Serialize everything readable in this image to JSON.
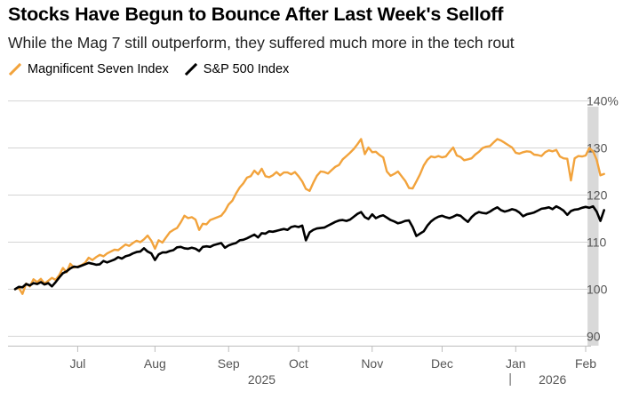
{
  "chart_data": {
    "type": "line",
    "title": "Stocks Have Begun to Bounce After Last Week's Selloff",
    "subtitle": "While the Mag 7 still outperform, they suffered much more in the tech rout",
    "xlabel": "",
    "ylabel": "",
    "ylim": [
      88,
      142
    ],
    "yticks": [
      90,
      100,
      110,
      120,
      130,
      140
    ],
    "ytick_labels": [
      "90",
      "100",
      "110",
      "120",
      "130",
      "140%"
    ],
    "x_unit": "trading day",
    "xlim": [
      0,
      155
    ],
    "month_ticks": [
      {
        "label": "Jul",
        "x": 17
      },
      {
        "label": "Aug",
        "x": 38
      },
      {
        "label": "Sep",
        "x": 58
      },
      {
        "label": "Oct",
        "x": 77
      },
      {
        "label": "Nov",
        "x": 97
      },
      {
        "label": "Dec",
        "x": 116
      },
      {
        "label": "Jan",
        "x": 136
      },
      {
        "label": "Feb",
        "x": 155
      }
    ],
    "year_labels": [
      {
        "label": "2025",
        "x": 67
      },
      {
        "label": "2026",
        "x": 146
      }
    ],
    "year_separator_x": 134.5,
    "highlight_range": [
      155.5,
      158.5
    ],
    "series": [
      {
        "name": "Magnificent Seven Index",
        "color": "#f2a33c",
        "x": [
          0,
          1,
          2,
          3,
          4,
          5,
          6,
          7,
          8,
          9,
          10,
          11,
          12,
          13,
          14,
          15,
          16,
          17,
          18,
          19,
          20,
          21,
          22,
          23,
          24,
          25,
          26,
          27,
          28,
          29,
          30,
          31,
          32,
          33,
          34,
          35,
          36,
          37,
          38,
          39,
          40,
          41,
          42,
          43,
          44,
          45,
          46,
          47,
          48,
          49,
          50,
          51,
          52,
          53,
          54,
          55,
          56,
          57,
          58,
          59,
          60,
          61,
          62,
          63,
          64,
          65,
          66,
          67,
          68,
          69,
          70,
          71,
          72,
          73,
          74,
          75,
          76,
          77,
          78,
          79,
          80,
          81,
          82,
          83,
          84,
          85,
          86,
          87,
          88,
          89,
          90,
          91,
          92,
          93,
          94,
          95,
          96,
          97,
          98,
          99,
          100,
          101,
          102,
          103,
          104,
          105,
          106,
          107,
          108,
          109,
          110,
          111,
          112,
          113,
          114,
          115,
          116,
          117,
          118,
          119,
          120,
          121,
          122,
          123,
          124,
          125,
          126,
          127,
          128,
          129,
          130,
          131,
          132,
          133,
          134,
          135,
          136,
          137,
          138,
          139,
          140,
          141,
          142,
          143,
          144,
          145,
          146,
          147,
          148,
          149,
          150,
          151,
          152,
          153,
          154,
          155,
          156,
          157,
          158,
          159,
          160
        ],
        "values": [
          100.0,
          100.3,
          99.0,
          101.2,
          100.6,
          102.1,
          101.5,
          102.2,
          101.2,
          101.8,
          102.4,
          102.0,
          103.0,
          104.5,
          103.6,
          105.4,
          104.6,
          104.8,
          105.1,
          105.6,
          106.7,
          106.2,
          106.8,
          107.3,
          107.0,
          107.6,
          108.0,
          108.4,
          108.3,
          108.9,
          109.5,
          109.2,
          109.8,
          110.3,
          110.0,
          110.6,
          111.4,
          110.3,
          108.6,
          110.4,
          109.9,
          111.0,
          112.1,
          112.6,
          113.0,
          114.2,
          115.6,
          115.1,
          115.3,
          114.8,
          112.6,
          113.9,
          113.8,
          114.7,
          115.0,
          115.3,
          115.6,
          116.6,
          118.0,
          118.8,
          120.3,
          121.6,
          122.5,
          123.7,
          124.0,
          125.2,
          124.4,
          125.6,
          124.0,
          123.8,
          124.2,
          124.9,
          124.2,
          124.8,
          124.8,
          124.4,
          124.9,
          124.0,
          122.9,
          121.3,
          120.9,
          122.6,
          124.1,
          125.0,
          124.9,
          124.6,
          125.3,
          126.0,
          126.4,
          127.6,
          128.3,
          129.0,
          129.8,
          130.8,
          131.9,
          128.7,
          130.1,
          129.1,
          129.2,
          128.5,
          128.0,
          125.0,
          124.1,
          124.5,
          125.0,
          124.0,
          123.0,
          121.5,
          121.4,
          122.9,
          124.4,
          126.3,
          127.5,
          128.2,
          128.0,
          128.3,
          128.0,
          128.2,
          129.2,
          130.1,
          128.4,
          128.1,
          127.4,
          127.6,
          127.8,
          128.6,
          129.2,
          130.0,
          130.3,
          130.4,
          131.2,
          131.9,
          131.6,
          131.1,
          130.6,
          130.1,
          129.0,
          128.8,
          129.1,
          129.3,
          129.2,
          128.6,
          128.5,
          128.3,
          129.1,
          129.5,
          129.3,
          129.6,
          128.2,
          127.8,
          127.7,
          123.1,
          127.8,
          128.3,
          128.2,
          128.4,
          130.0,
          129.3,
          127.5,
          124.2,
          124.5
        ]
      },
      {
        "name": "S&P 500 Index",
        "color": "#000000",
        "x": [
          0,
          1,
          2,
          3,
          4,
          5,
          6,
          7,
          8,
          9,
          10,
          11,
          12,
          13,
          14,
          15,
          16,
          17,
          18,
          19,
          20,
          21,
          22,
          23,
          24,
          25,
          26,
          27,
          28,
          29,
          30,
          31,
          32,
          33,
          34,
          35,
          36,
          37,
          38,
          39,
          40,
          41,
          42,
          43,
          44,
          45,
          46,
          47,
          48,
          49,
          50,
          51,
          52,
          53,
          54,
          55,
          56,
          57,
          58,
          59,
          60,
          61,
          62,
          63,
          64,
          65,
          66,
          67,
          68,
          69,
          70,
          71,
          72,
          73,
          74,
          75,
          76,
          77,
          78,
          79,
          80,
          81,
          82,
          83,
          84,
          85,
          86,
          87,
          88,
          89,
          90,
          91,
          92,
          93,
          94,
          95,
          96,
          97,
          98,
          99,
          100,
          101,
          102,
          103,
          104,
          105,
          106,
          107,
          108,
          109,
          110,
          111,
          112,
          113,
          114,
          115,
          116,
          117,
          118,
          119,
          120,
          121,
          122,
          123,
          124,
          125,
          126,
          127,
          128,
          129,
          130,
          131,
          132,
          133,
          134,
          135,
          136,
          137,
          138,
          139,
          140,
          141,
          142,
          143,
          144,
          145,
          146,
          147,
          148,
          149,
          150,
          151,
          152,
          153,
          154,
          155,
          156,
          157,
          158,
          159,
          160
        ],
        "values": [
          100.0,
          100.5,
          100.4,
          101.1,
          100.8,
          101.3,
          101.1,
          101.5,
          101.0,
          101.3,
          100.6,
          101.5,
          102.5,
          103.4,
          103.8,
          104.4,
          104.8,
          104.7,
          105.0,
          105.3,
          105.6,
          105.4,
          105.2,
          105.3,
          106.0,
          105.7,
          106.0,
          106.3,
          106.8,
          106.5,
          107.0,
          107.2,
          107.6,
          107.9,
          108.0,
          108.7,
          108.0,
          107.6,
          106.2,
          107.4,
          107.8,
          107.8,
          108.1,
          108.3,
          108.9,
          109.0,
          108.7,
          108.6,
          108.8,
          108.6,
          108.1,
          109.0,
          109.1,
          109.0,
          109.4,
          109.6,
          109.8,
          108.8,
          109.3,
          109.6,
          109.8,
          110.4,
          110.5,
          110.8,
          111.2,
          111.6,
          111.0,
          111.9,
          111.8,
          112.3,
          112.2,
          112.4,
          112.6,
          112.8,
          112.6,
          113.2,
          113.4,
          113.2,
          113.5,
          110.4,
          112.1,
          112.6,
          112.9,
          113.0,
          113.1,
          113.5,
          113.9,
          114.3,
          114.6,
          114.7,
          114.5,
          114.8,
          115.4,
          116.0,
          116.4,
          115.3,
          114.9,
          115.9,
          115.1,
          115.5,
          115.7,
          115.2,
          114.7,
          114.4,
          114.0,
          114.2,
          114.5,
          114.6,
          113.2,
          111.3,
          111.8,
          112.3,
          113.5,
          114.4,
          115.0,
          115.4,
          115.6,
          115.3,
          115.1,
          115.4,
          115.8,
          115.6,
          114.9,
          114.3,
          115.3,
          116.0,
          116.4,
          116.2,
          116.1,
          116.5,
          117.0,
          117.4,
          116.8,
          116.5,
          116.7,
          117.0,
          116.8,
          116.3,
          115.5,
          115.9,
          116.1,
          116.3,
          116.7,
          117.1,
          117.2,
          117.4,
          117.0,
          117.6,
          117.2,
          116.7,
          115.8,
          116.6,
          116.9,
          117.0,
          117.3,
          117.5,
          117.3,
          117.6,
          116.5,
          114.5,
          116.8
        ]
      }
    ]
  }
}
